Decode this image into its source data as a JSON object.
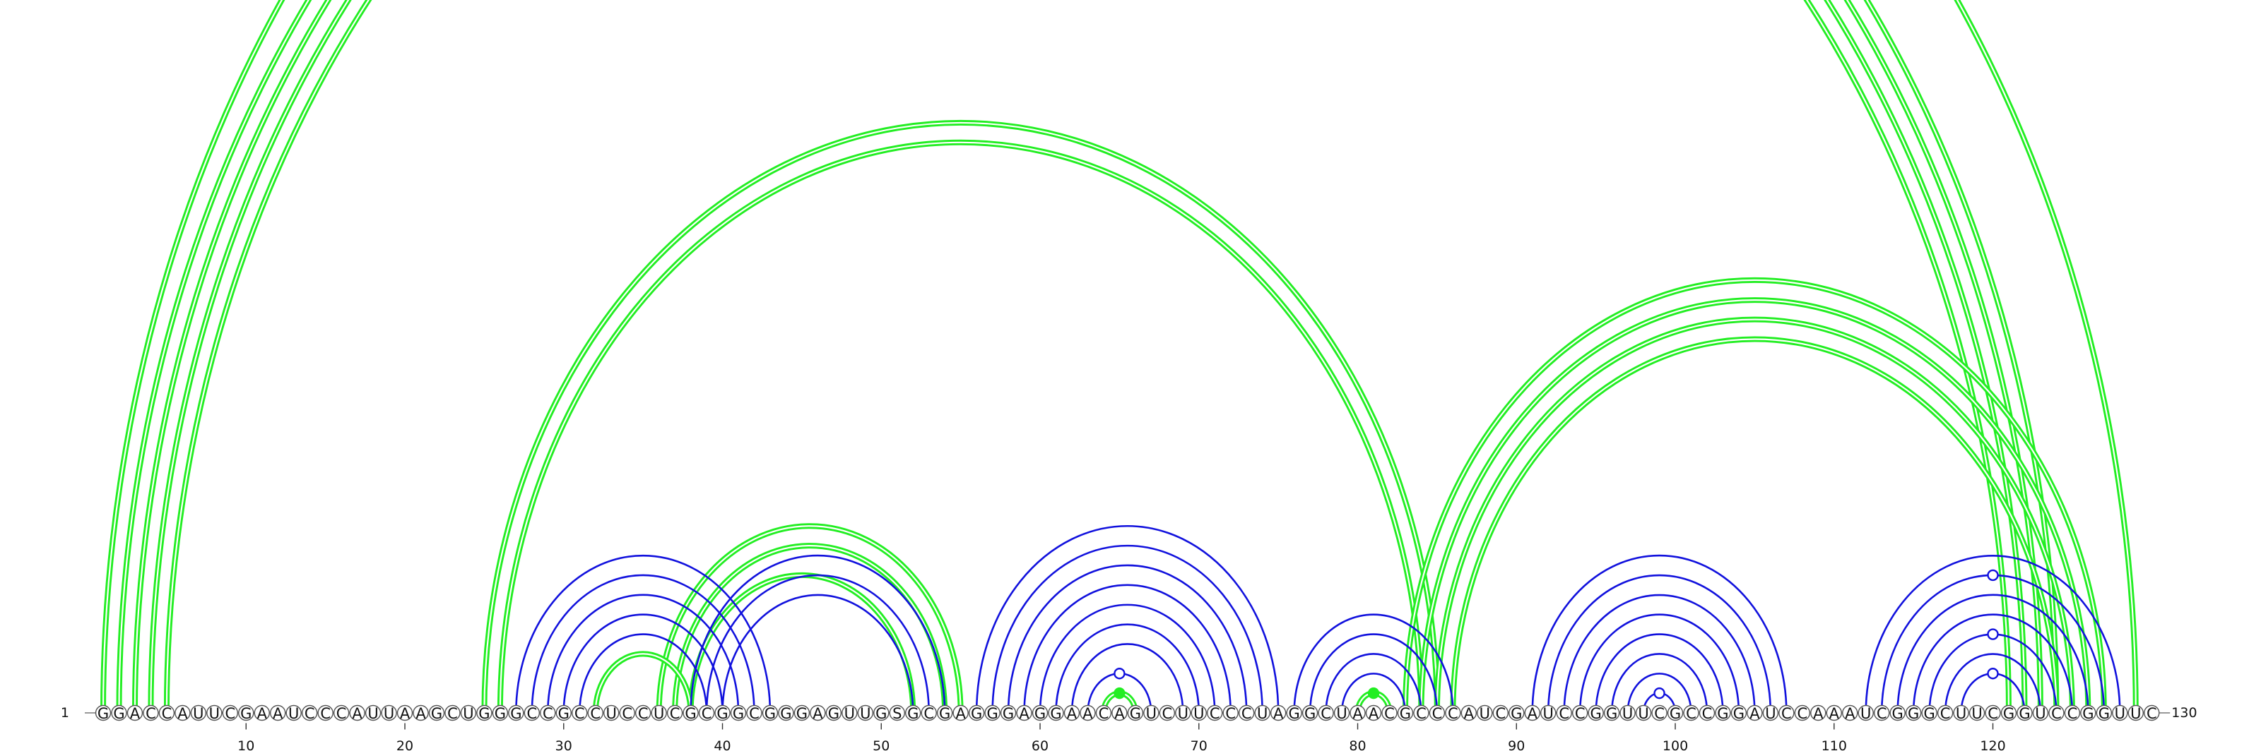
{
  "sequence": "GGACCAUUCGAAUCCCAUUAAGCUGGGCCGCCUCCUCGCGGCGGGAGUUGSGCGAGGGAGGAACAGUCUUCCCUAGGCUAACGCCCAUCGAUCCGGUUCGCCGGAUCCAAAUCGGGCUUCGGUCCGGUUC",
  "start_label": "1",
  "end_label": "130",
  "ticks": [
    10,
    20,
    30,
    40,
    50,
    60,
    70,
    80,
    90,
    100,
    110,
    120
  ],
  "colors": {
    "primary": "#22ee22",
    "secondary": "#1111dd"
  },
  "arcs": [
    {
      "i": 1,
      "j": 129,
      "color": "primary",
      "weight": 3
    },
    {
      "i": 2,
      "j": 124,
      "color": "primary",
      "weight": 3
    },
    {
      "i": 3,
      "j": 123,
      "color": "primary",
      "weight": 3
    },
    {
      "i": 4,
      "j": 122,
      "color": "primary",
      "weight": 3
    },
    {
      "i": 5,
      "j": 121,
      "color": "primary",
      "weight": 3
    },
    {
      "i": 25,
      "j": 85,
      "color": "primary",
      "weight": 3
    },
    {
      "i": 26,
      "j": 84,
      "color": "primary",
      "weight": 3
    },
    {
      "i": 83,
      "j": 127,
      "color": "primary",
      "weight": 3
    },
    {
      "i": 84,
      "j": 126,
      "color": "primary",
      "weight": 3
    },
    {
      "i": 85,
      "j": 125,
      "color": "primary",
      "weight": 3
    },
    {
      "i": 86,
      "j": 124,
      "color": "primary",
      "weight": 3
    },
    {
      "i": 36,
      "j": 55,
      "color": "primary",
      "weight": 3
    },
    {
      "i": 37,
      "j": 54,
      "color": "primary",
      "weight": 3
    },
    {
      "i": 38,
      "j": 52,
      "color": "primary",
      "weight": 3
    },
    {
      "i": 32,
      "j": 38,
      "color": "primary",
      "weight": 3
    },
    {
      "i": 64,
      "j": 66,
      "color": "primary",
      "weight": 3
    },
    {
      "i": 80,
      "j": 82,
      "color": "primary",
      "weight": 3
    },
    {
      "i": 27,
      "j": 43,
      "color": "secondary",
      "weight": 2
    },
    {
      "i": 28,
      "j": 42,
      "color": "secondary",
      "weight": 2
    },
    {
      "i": 29,
      "j": 41,
      "color": "secondary",
      "weight": 2
    },
    {
      "i": 30,
      "j": 40,
      "color": "secondary",
      "weight": 2
    },
    {
      "i": 31,
      "j": 39,
      "color": "secondary",
      "weight": 2
    },
    {
      "i": 38,
      "j": 54,
      "color": "secondary",
      "weight": 2
    },
    {
      "i": 39,
      "j": 53,
      "color": "secondary",
      "weight": 2
    },
    {
      "i": 40,
      "j": 52,
      "color": "secondary",
      "weight": 2
    },
    {
      "i": 56,
      "j": 75,
      "color": "secondary",
      "weight": 2
    },
    {
      "i": 57,
      "j": 74,
      "color": "secondary",
      "weight": 2
    },
    {
      "i": 58,
      "j": 73,
      "color": "secondary",
      "weight": 2
    },
    {
      "i": 59,
      "j": 72,
      "color": "secondary",
      "weight": 2
    },
    {
      "i": 60,
      "j": 71,
      "color": "secondary",
      "weight": 2
    },
    {
      "i": 61,
      "j": 70,
      "color": "secondary",
      "weight": 2
    },
    {
      "i": 62,
      "j": 69,
      "color": "secondary",
      "weight": 2
    },
    {
      "i": 63,
      "j": 67,
      "color": "secondary",
      "weight": 2
    },
    {
      "i": 76,
      "j": 86,
      "color": "secondary",
      "weight": 2
    },
    {
      "i": 77,
      "j": 85,
      "color": "secondary",
      "weight": 2
    },
    {
      "i": 78,
      "j": 84,
      "color": "secondary",
      "weight": 2
    },
    {
      "i": 79,
      "j": 83,
      "color": "secondary",
      "weight": 2
    },
    {
      "i": 91,
      "j": 107,
      "color": "secondary",
      "weight": 2
    },
    {
      "i": 92,
      "j": 106,
      "color": "secondary",
      "weight": 2
    },
    {
      "i": 93,
      "j": 105,
      "color": "secondary",
      "weight": 2
    },
    {
      "i": 94,
      "j": 104,
      "color": "secondary",
      "weight": 2
    },
    {
      "i": 95,
      "j": 103,
      "color": "secondary",
      "weight": 2
    },
    {
      "i": 96,
      "j": 102,
      "color": "secondary",
      "weight": 2
    },
    {
      "i": 97,
      "j": 101,
      "color": "secondary",
      "weight": 2
    },
    {
      "i": 98,
      "j": 100,
      "color": "secondary",
      "weight": 2
    },
    {
      "i": 112,
      "j": 128,
      "color": "secondary",
      "weight": 2
    },
    {
      "i": 113,
      "j": 127,
      "color": "secondary",
      "weight": 2
    },
    {
      "i": 114,
      "j": 126,
      "color": "secondary",
      "weight": 2
    },
    {
      "i": 115,
      "j": 125,
      "color": "secondary",
      "weight": 2
    },
    {
      "i": 116,
      "j": 124,
      "color": "secondary",
      "weight": 2
    },
    {
      "i": 117,
      "j": 123,
      "color": "secondary",
      "weight": 2
    },
    {
      "i": 118,
      "j": 122,
      "color": "secondary",
      "weight": 2
    }
  ],
  "markers": [
    {
      "i": 1,
      "j": 129,
      "color": "primary",
      "filled": false
    },
    {
      "i": 64,
      "j": 66,
      "color": "primary",
      "filled": true
    },
    {
      "i": 80,
      "j": 82,
      "color": "primary",
      "filled": true
    },
    {
      "i": 63,
      "j": 67,
      "color": "secondary",
      "filled": false
    },
    {
      "i": 98,
      "j": 100,
      "color": "secondary",
      "filled": false
    },
    {
      "i": 118,
      "j": 122,
      "color": "secondary",
      "filled": false
    },
    {
      "i": 116,
      "j": 124,
      "color": "secondary",
      "filled": false
    },
    {
      "i": 113,
      "j": 127,
      "color": "secondary",
      "filled": false
    }
  ]
}
